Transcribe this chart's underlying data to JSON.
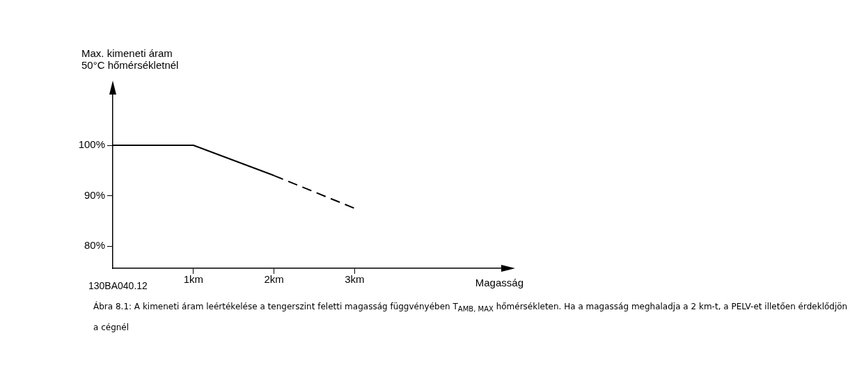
{
  "chart_data": {
    "type": "line",
    "ylabel": "Max. kimeneti áram\n50°C hőmérsékletnél",
    "xlabel": "Magasság",
    "xlim": [
      0,
      4.87
    ],
    "ylim": [
      75.6,
      110.9
    ],
    "xticks": [
      {
        "value": 1,
        "label": "1km"
      },
      {
        "value": 2,
        "label": "2km"
      },
      {
        "value": 3,
        "label": "3km"
      }
    ],
    "yticks": [
      {
        "value": 80,
        "label": "80%"
      },
      {
        "value": 90,
        "label": "90%"
      },
      {
        "value": 100,
        "label": "100%"
      }
    ],
    "series": [
      {
        "color": "#000000",
        "x": [
          0,
          1,
          2
        ],
        "values": [
          100,
          100,
          94
        ],
        "line_style": "solid"
      },
      {
        "color": "#000000",
        "x": [
          2,
          3
        ],
        "values": [
          94,
          87.5
        ],
        "line_style": "dashed"
      }
    ],
    "marker": "none",
    "grid": false,
    "legend": false,
    "annotations": [
      "130BA040.12",
      "Ábra 8.1: A kimeneti áram leértékelése a tengerszint feletti magasság függvényében T$_{AMB, MAX}$ hőmérsékleten. Ha a magasság meghaladja a 2 km-t, a PELV-et illetően érdeklődjön a cégnél"
    ]
  }
}
